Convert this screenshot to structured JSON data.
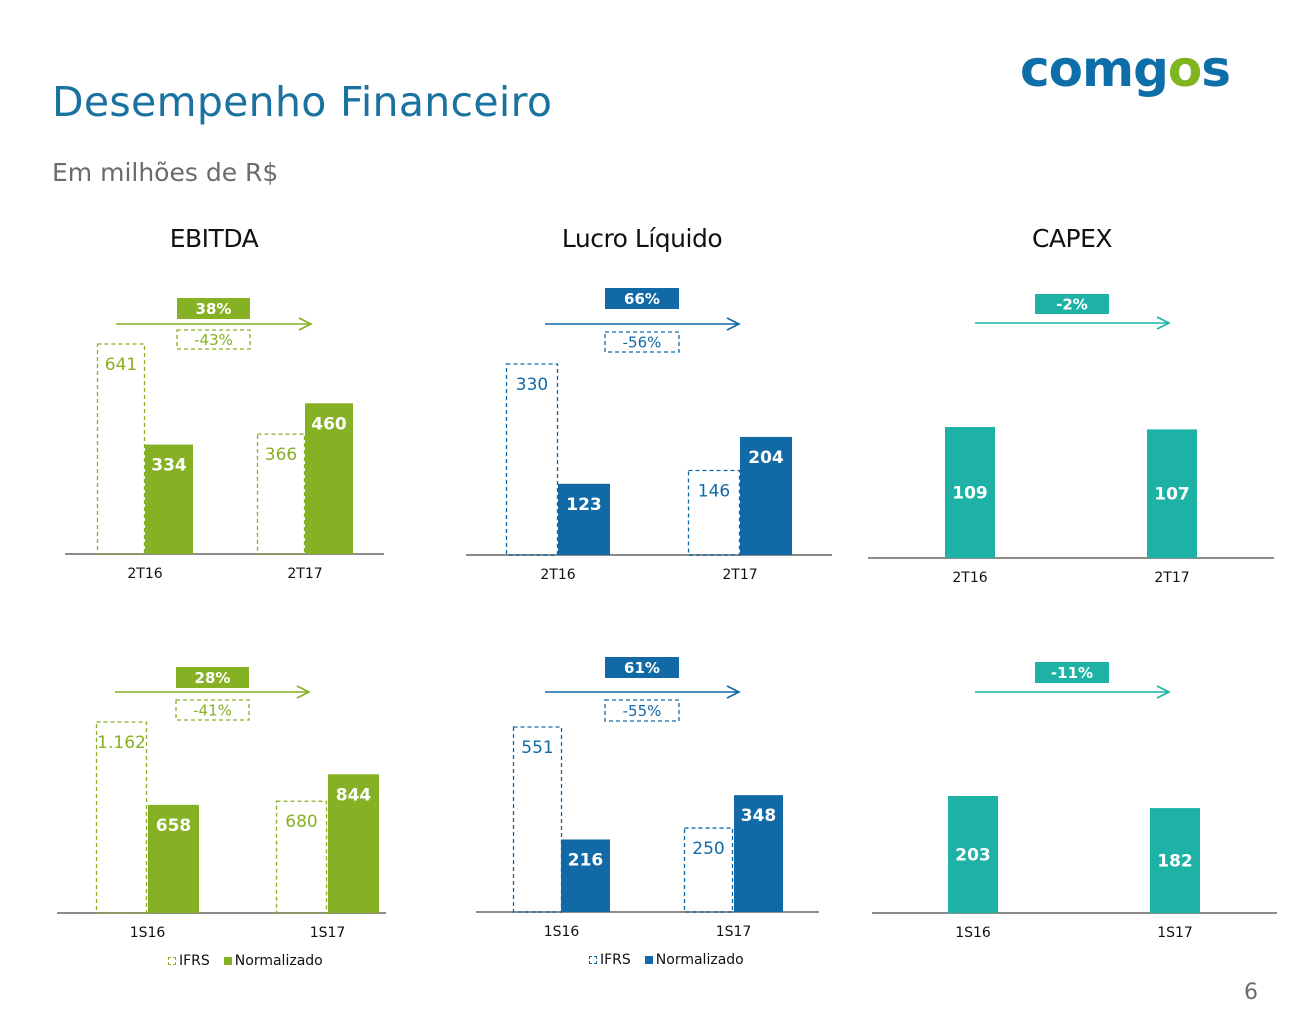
{
  "header": {
    "title": "Desempenho Financeiro",
    "subtitle": "Em milhões de R$",
    "logo_main": "comg",
    "logo_accent": "o",
    "logo_tail": "s"
  },
  "colors": {
    "ebitda": "#86b125",
    "lucro": "#116aa6",
    "capex": "#1db2a5",
    "axis": "#8c8c8c",
    "brand_blue": "#0d6ea8",
    "brand_green": "#7fb51e"
  },
  "legend": {
    "ifrs": "IFRS",
    "normalizado": "Normalizado"
  },
  "page_number": "6",
  "chart_data": [
    {
      "id": "ebitda-quarter",
      "type": "bar",
      "title": "EBITDA",
      "color_key": "ebitda",
      "categories": [
        "2T16",
        "2T17"
      ],
      "series": [
        {
          "name": "IFRS",
          "style": "dashed",
          "values": [
            641,
            366
          ],
          "labels": [
            "641",
            "366"
          ]
        },
        {
          "name": "Normalizado",
          "style": "solid",
          "values": [
            334,
            460
          ],
          "labels": [
            "334",
            "460"
          ]
        }
      ],
      "change_normalizado": "38%",
      "change_ifrs": "-43%"
    },
    {
      "id": "lucro-quarter",
      "type": "bar",
      "title": "Lucro Líquido",
      "color_key": "lucro",
      "categories": [
        "2T16",
        "2T17"
      ],
      "series": [
        {
          "name": "IFRS",
          "style": "dashed",
          "values": [
            330,
            146
          ],
          "labels": [
            "330",
            "146"
          ]
        },
        {
          "name": "Normalizado",
          "style": "solid",
          "values": [
            123,
            204
          ],
          "labels": [
            "123",
            "204"
          ]
        }
      ],
      "change_normalizado": "66%",
      "change_ifrs": "-56%"
    },
    {
      "id": "capex-quarter",
      "type": "bar",
      "title": "CAPEX",
      "color_key": "capex",
      "categories": [
        "2T16",
        "2T17"
      ],
      "series": [
        {
          "name": "CAPEX",
          "style": "solid",
          "values": [
            109,
            107
          ],
          "labels": [
            "109",
            "107"
          ]
        }
      ],
      "change_normalizado": "-2%"
    },
    {
      "id": "ebitda-semester",
      "type": "bar",
      "title": "EBITDA",
      "color_key": "ebitda",
      "categories": [
        "1S16",
        "1S17"
      ],
      "series": [
        {
          "name": "IFRS",
          "style": "dashed",
          "values": [
            1162,
            680
          ],
          "labels": [
            "1.162",
            "680"
          ]
        },
        {
          "name": "Normalizado",
          "style": "solid",
          "values": [
            658,
            844
          ],
          "labels": [
            "658",
            "844"
          ]
        }
      ],
      "change_normalizado": "28%",
      "change_ifrs": "-41%"
    },
    {
      "id": "lucro-semester",
      "type": "bar",
      "title": "Lucro Líquido",
      "color_key": "lucro",
      "categories": [
        "1S16",
        "1S17"
      ],
      "series": [
        {
          "name": "IFRS",
          "style": "dashed",
          "values": [
            551,
            250
          ],
          "labels": [
            "551",
            "250"
          ]
        },
        {
          "name": "Normalizado",
          "style": "solid",
          "values": [
            216,
            348
          ],
          "labels": [
            "216",
            "348"
          ]
        }
      ],
      "change_normalizado": "61%",
      "change_ifrs": "-55%"
    },
    {
      "id": "capex-semester",
      "type": "bar",
      "title": "CAPEX",
      "color_key": "capex",
      "categories": [
        "1S16",
        "1S17"
      ],
      "series": [
        {
          "name": "CAPEX",
          "style": "solid",
          "values": [
            203,
            182
          ],
          "labels": [
            "203",
            "182"
          ]
        }
      ],
      "change_normalizado": "-11%"
    }
  ]
}
